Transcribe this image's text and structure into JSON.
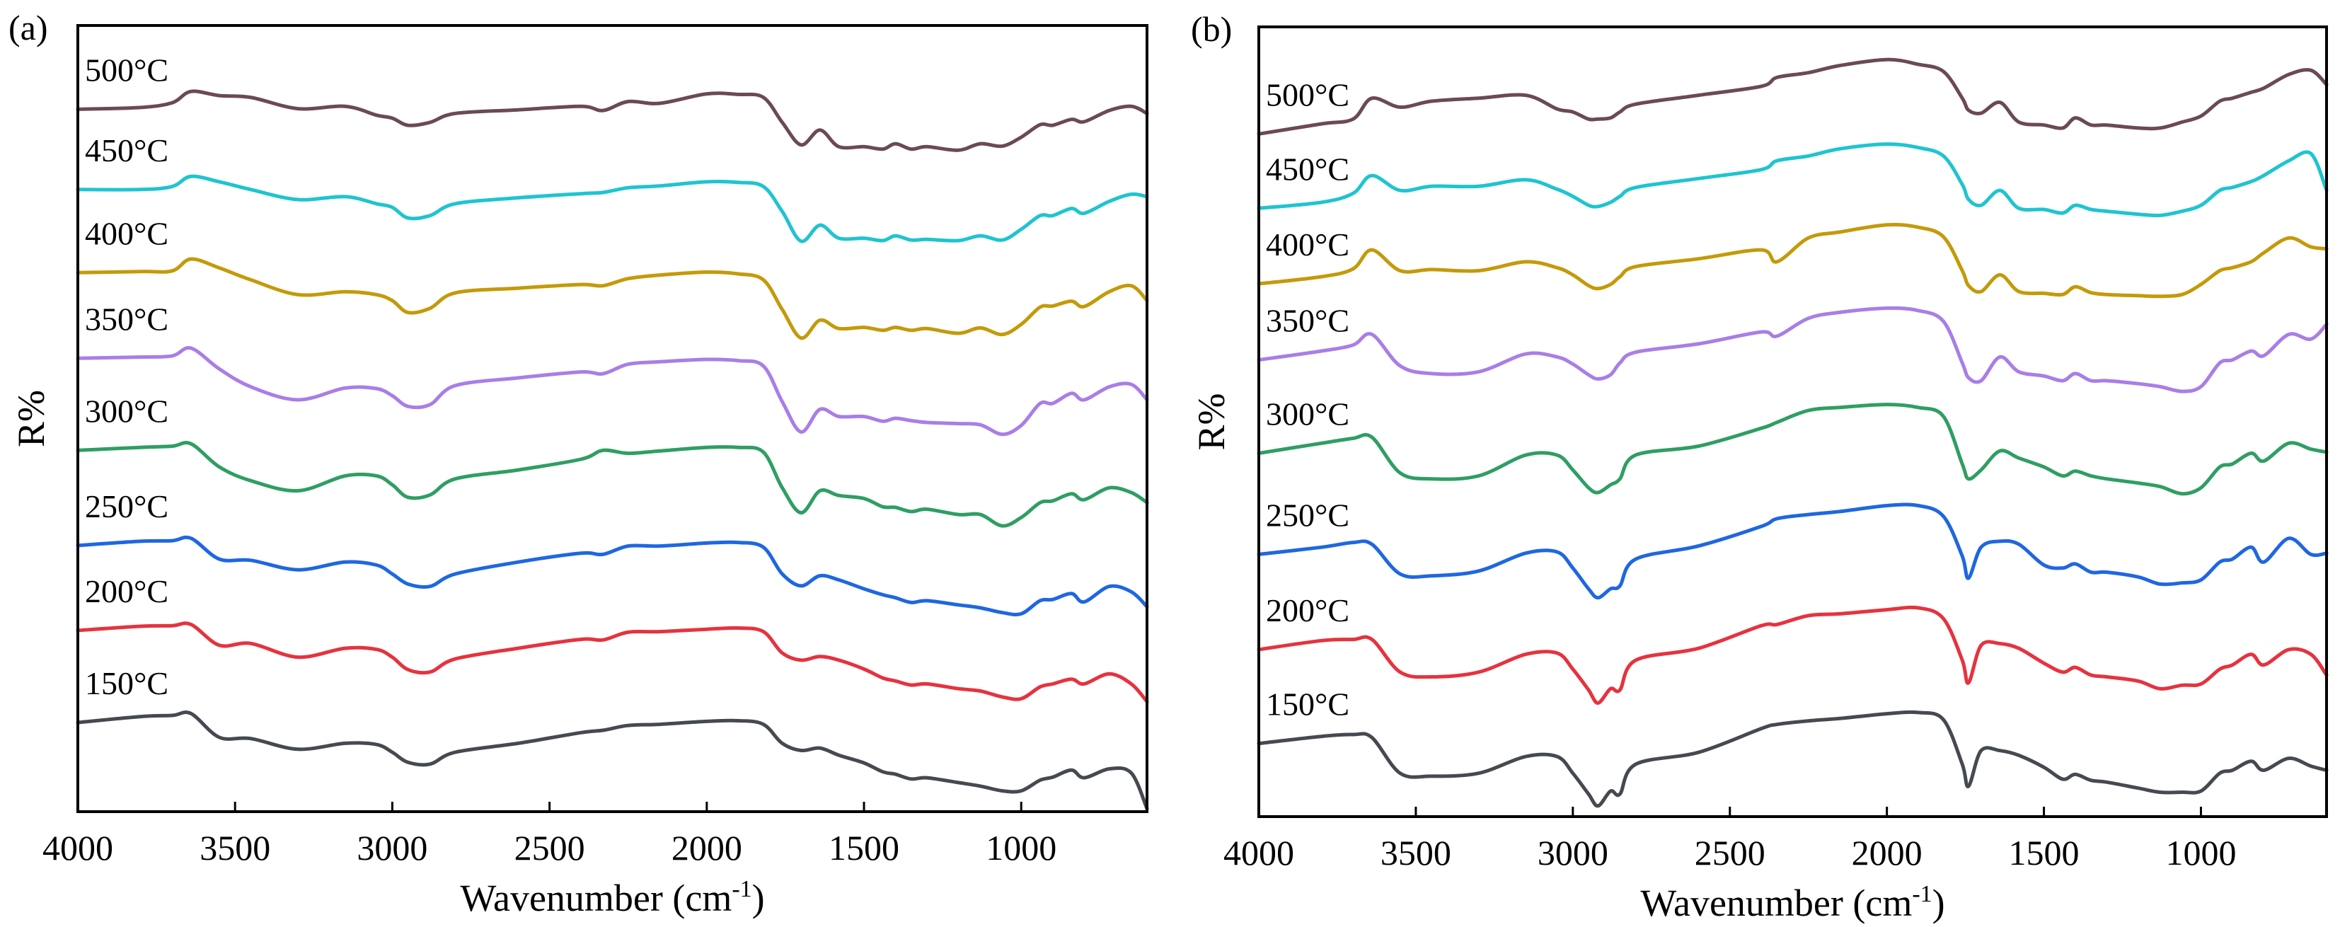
{
  "chart_data": [
    {
      "type": "line",
      "panel_label": "(a)",
      "xlabel": "Wavenumber (cm",
      "xlabel_sup": "-1",
      "xlabel_end": ")",
      "ylabel": "R%",
      "xlim": [
        4000,
        600
      ],
      "ylim": [
        0,
        132.3
      ],
      "xticks": [
        4000,
        3500,
        3000,
        2500,
        2000,
        1500,
        1000
      ],
      "xtick_labels": [
        "4000",
        "3500",
        "3000",
        "2500",
        "2000",
        "1500",
        "1000"
      ],
      "grid": false,
      "legend": "inline labels at left of each curve",
      "x": [
        4000,
        3800,
        3700,
        3640,
        3550,
        3450,
        3300,
        3150,
        3050,
        3000,
        2950,
        2880,
        2800,
        2600,
        2400,
        2330,
        2250,
        2150,
        2000,
        1900,
        1820,
        1760,
        1700,
        1640,
        1580,
        1500,
        1440,
        1400,
        1350,
        1300,
        1200,
        1130,
        1060,
        1000,
        940,
        900,
        840,
        800,
        720,
        650,
        600
      ],
      "series": [
        {
          "name": "500°C",
          "color": "#6b4a52",
          "values": [
            118.2,
            118.5,
            119.3,
            121.2,
            120.5,
            120.2,
            118.3,
            118.7,
            117.2,
            116.7,
            115.5,
            116.0,
            117.5,
            118.1,
            118.7,
            118.0,
            119.5,
            119.2,
            120.8,
            120.7,
            120.2,
            116.0,
            112.2,
            114.7,
            111.9,
            111.9,
            111.5,
            112.4,
            111.5,
            111.9,
            111.3,
            112.4,
            112.0,
            113.5,
            115.6,
            115.5,
            116.5,
            116.1,
            118.0,
            118.7,
            117.5
          ]
        },
        {
          "name": "450°C",
          "color": "#1fc4d0",
          "values": [
            104.7,
            104.7,
            105.2,
            106.9,
            106.0,
            104.7,
            103.0,
            103.5,
            102.3,
            101.7,
            99.9,
            100.3,
            102.3,
            103.3,
            104.0,
            104.2,
            105.0,
            105.3,
            106.0,
            105.9,
            105.2,
            101.0,
            96.0,
            98.7,
            96.5,
            96.5,
            96.1,
            96.9,
            96.2,
            96.3,
            96.1,
            96.9,
            96.2,
            98.0,
            100.3,
            100.3,
            101.5,
            100.7,
            102.7,
            103.9,
            103.5
          ]
        },
        {
          "name": "400°C",
          "color": "#c49a0a",
          "values": [
            90.7,
            90.9,
            91.0,
            93.0,
            91.5,
            89.5,
            87.0,
            87.5,
            87.0,
            86.0,
            84.0,
            84.7,
            87.3,
            88.1,
            88.7,
            88.5,
            89.7,
            90.3,
            90.8,
            90.5,
            89.5,
            84.5,
            79.7,
            82.7,
            81.3,
            81.5,
            81.0,
            81.5,
            81.0,
            81.3,
            80.5,
            81.4,
            80.3,
            82.0,
            84.9,
            85.1,
            85.9,
            85.0,
            87.5,
            88.5,
            86.0
          ]
        },
        {
          "name": "350°C",
          "color": "#a97ee6",
          "values": [
            76.3,
            76.5,
            76.7,
            78.0,
            74.5,
            71.5,
            69.3,
            71.3,
            71.2,
            70.0,
            68.2,
            68.5,
            71.7,
            73.0,
            74.0,
            73.7,
            75.3,
            75.7,
            76.1,
            75.9,
            75.0,
            69.0,
            63.9,
            67.7,
            66.5,
            66.5,
            65.7,
            66.2,
            65.8,
            65.5,
            65.3,
            65.1,
            63.5,
            65.0,
            68.7,
            68.7,
            70.4,
            69.3,
            71.5,
            71.9,
            69.3
          ]
        },
        {
          "name": "300°C",
          "color": "#2f9e64",
          "values": [
            60.8,
            61.3,
            61.5,
            61.9,
            58.0,
            55.7,
            54.0,
            56.5,
            56.5,
            55.0,
            52.9,
            53.3,
            56.0,
            57.5,
            59.3,
            60.8,
            60.3,
            60.7,
            61.3,
            61.3,
            60.5,
            54.5,
            50.3,
            54.0,
            53.2,
            52.7,
            51.3,
            51.2,
            50.5,
            50.9,
            50.0,
            50.0,
            48.1,
            49.5,
            52.0,
            52.3,
            53.5,
            52.5,
            54.5,
            53.7,
            52.0
          ]
        },
        {
          "name": "250°C",
          "color": "#1f67e0",
          "values": [
            44.8,
            45.5,
            45.6,
            46.0,
            42.5,
            42.3,
            40.7,
            42.0,
            41.5,
            40.0,
            38.3,
            37.9,
            40.0,
            42.0,
            43.5,
            43.3,
            44.7,
            44.7,
            45.2,
            45.3,
            44.5,
            40.0,
            38.0,
            39.7,
            39.0,
            37.5,
            36.5,
            36.0,
            35.2,
            35.5,
            34.8,
            34.3,
            33.5,
            33.3,
            35.5,
            35.7,
            36.7,
            35.3,
            37.9,
            37.0,
            34.5
          ]
        },
        {
          "name": "200°C",
          "color": "#e5333f",
          "values": [
            30.5,
            31.2,
            31.3,
            31.5,
            28.0,
            28.3,
            26.0,
            27.5,
            27.3,
            26.0,
            23.9,
            23.5,
            25.7,
            27.5,
            29.0,
            28.9,
            30.2,
            30.3,
            30.7,
            30.9,
            30.3,
            26.7,
            25.5,
            26.1,
            25.5,
            24.0,
            22.5,
            22.0,
            21.3,
            21.5,
            20.7,
            20.3,
            19.3,
            19.0,
            21.0,
            21.5,
            22.3,
            21.5,
            23.2,
            21.5,
            18.5
          ]
        },
        {
          "name": "150°C",
          "color": "#454a50",
          "values": [
            15.0,
            16.0,
            16.2,
            16.5,
            12.5,
            12.3,
            10.5,
            11.5,
            11.3,
            10.0,
            8.3,
            8.0,
            10.0,
            11.5,
            13.3,
            13.7,
            14.5,
            14.7,
            15.2,
            15.3,
            14.7,
            11.5,
            10.3,
            10.7,
            9.5,
            8.2,
            6.7,
            6.3,
            5.5,
            5.7,
            4.9,
            4.3,
            3.5,
            3.5,
            5.3,
            5.8,
            7.0,
            5.7,
            7.2,
            6.5,
            0.5
          ]
        }
      ]
    },
    {
      "type": "line",
      "panel_label": "(b)",
      "xlabel": "Wavenumber (cm",
      "xlabel_sup": "-1",
      "xlabel_end": ")",
      "ylabel": "R%",
      "xlim": [
        4000,
        600
      ],
      "ylim": [
        0,
        132.8
      ],
      "xticks": [
        4000,
        3500,
        3000,
        2500,
        2000,
        1500,
        1000
      ],
      "xtick_labels": [
        "4000",
        "3500",
        "3000",
        "2500",
        "2000",
        "1500",
        "1000"
      ],
      "grid": false,
      "legend": "inline labels at left of each curve",
      "x": [
        4000,
        3800,
        3700,
        3640,
        3550,
        3450,
        3300,
        3150,
        3050,
        3000,
        2950,
        2920,
        2880,
        2850,
        2800,
        2600,
        2400,
        2350,
        2250,
        2150,
        2000,
        1900,
        1820,
        1760,
        1740,
        1700,
        1640,
        1580,
        1500,
        1440,
        1400,
        1350,
        1300,
        1200,
        1130,
        1060,
        1000,
        940,
        900,
        840,
        800,
        720,
        650,
        600
      ],
      "series": [
        {
          "name": "500°C",
          "color": "#6b4a52",
          "values": [
            114.8,
            116.5,
            117.3,
            120.8,
            119.3,
            120.3,
            120.8,
            121.3,
            119.0,
            118.5,
            117.3,
            117.3,
            117.5,
            118.5,
            119.8,
            121.3,
            122.8,
            124.3,
            125.1,
            126.3,
            127.3,
            126.5,
            125.3,
            120.8,
            118.8,
            118.3,
            120.1,
            116.8,
            116.3,
            115.8,
            117.5,
            116.3,
            116.3,
            115.8,
            115.8,
            116.8,
            117.8,
            120.3,
            120.8,
            121.8,
            122.5,
            124.8,
            125.5,
            123.1
          ]
        },
        {
          "name": "450°C",
          "color": "#1fc4d0",
          "values": [
            102.3,
            103.3,
            104.8,
            107.8,
            105.3,
            106.0,
            106.0,
            107.1,
            105.5,
            104.3,
            102.8,
            102.6,
            103.3,
            104.3,
            105.8,
            107.3,
            108.8,
            110.3,
            111.1,
            112.3,
            113.1,
            112.5,
            111.1,
            106.3,
            103.8,
            102.8,
            105.3,
            102.3,
            102.1,
            101.5,
            102.8,
            102.1,
            101.8,
            101.3,
            101.1,
            101.8,
            102.8,
            105.3,
            105.8,
            106.8,
            107.8,
            110.3,
            111.5,
            105.3
          ]
        },
        {
          "name": "400°C",
          "color": "#c49a0a",
          "values": [
            89.6,
            90.8,
            92.1,
            95.3,
            91.8,
            92.0,
            91.8,
            93.3,
            92.3,
            91.1,
            89.3,
            88.8,
            89.5,
            90.8,
            92.5,
            93.8,
            95.3,
            93.3,
            97.3,
            98.3,
            99.5,
            99.1,
            97.5,
            91.8,
            89.3,
            88.3,
            91.1,
            88.3,
            88.0,
            87.8,
            89.1,
            88.1,
            87.8,
            87.6,
            87.5,
            87.8,
            89.5,
            91.8,
            92.3,
            93.3,
            94.8,
            97.3,
            95.8,
            95.5
          ]
        },
        {
          "name": "350°C",
          "color": "#a97ee6",
          "values": [
            76.8,
            78.3,
            79.3,
            81.1,
            75.8,
            74.5,
            74.8,
            77.8,
            77.3,
            76.1,
            74.3,
            73.6,
            74.3,
            76.3,
            78.1,
            79.5,
            81.5,
            80.8,
            83.8,
            84.8,
            85.5,
            85.1,
            83.3,
            76.3,
            73.8,
            73.3,
            77.3,
            74.8,
            74.1,
            73.3,
            74.5,
            73.3,
            73.3,
            72.8,
            72.3,
            71.5,
            72.3,
            76.3,
            76.8,
            78.3,
            77.5,
            81.1,
            80.3,
            82.8
          ]
        },
        {
          "name": "300°C",
          "color": "#2f9e64",
          "values": [
            61.1,
            62.8,
            63.6,
            63.8,
            57.8,
            56.8,
            57.3,
            60.8,
            60.8,
            58.3,
            55.3,
            54.5,
            55.8,
            56.8,
            60.8,
            62.3,
            65.3,
            66.3,
            68.3,
            68.8,
            69.3,
            68.8,
            67.3,
            59.3,
            56.8,
            58.3,
            61.5,
            60.3,
            58.8,
            57.3,
            58.1,
            57.3,
            56.8,
            56.1,
            55.5,
            54.3,
            55.3,
            58.8,
            59.3,
            61.1,
            59.8,
            62.8,
            61.8,
            61.3
          ]
        },
        {
          "name": "250°C",
          "color": "#1f67e0",
          "values": [
            44.1,
            45.3,
            46.1,
            45.8,
            40.8,
            40.5,
            41.3,
            44.3,
            44.5,
            41.8,
            38.3,
            36.8,
            38.3,
            38.8,
            43.3,
            45.5,
            48.8,
            50.1,
            50.8,
            51.3,
            52.3,
            52.3,
            50.5,
            43.8,
            40.1,
            45.3,
            46.3,
            45.8,
            42.3,
            41.8,
            42.5,
            41.1,
            41.1,
            40.3,
            39.1,
            39.3,
            39.8,
            42.8,
            43.3,
            45.3,
            42.8,
            46.8,
            44.1,
            44.3
          ]
        },
        {
          "name": "200°C",
          "color": "#e5333f",
          "values": [
            28.1,
            29.6,
            29.8,
            29.8,
            24.3,
            23.5,
            24.3,
            27.3,
            27.5,
            24.8,
            21.3,
            19.1,
            21.5,
            21.3,
            26.3,
            28.3,
            32.1,
            32.3,
            33.8,
            34.1,
            34.8,
            35.1,
            33.3,
            26.3,
            22.5,
            28.8,
            29.1,
            28.3,
            25.8,
            24.3,
            25.1,
            23.8,
            23.5,
            22.8,
            21.5,
            22.1,
            22.3,
            24.8,
            25.5,
            27.3,
            25.5,
            28.1,
            27.3,
            23.8
          ]
        },
        {
          "name": "150°C",
          "color": "#454a50",
          "values": [
            12.3,
            13.5,
            13.8,
            13.3,
            7.3,
            6.8,
            7.3,
            10.1,
            10.1,
            7.3,
            3.8,
            1.8,
            4.3,
            3.8,
            8.8,
            10.8,
            14.8,
            15.5,
            16.1,
            16.5,
            17.3,
            17.5,
            16.3,
            8.8,
            5.1,
            11.1,
            11.1,
            10.3,
            8.3,
            6.3,
            7.1,
            6.1,
            5.8,
            4.8,
            4.1,
            4.1,
            4.3,
            7.3,
            7.8,
            9.3,
            7.8,
            9.8,
            8.5,
            7.8
          ]
        }
      ]
    }
  ]
}
